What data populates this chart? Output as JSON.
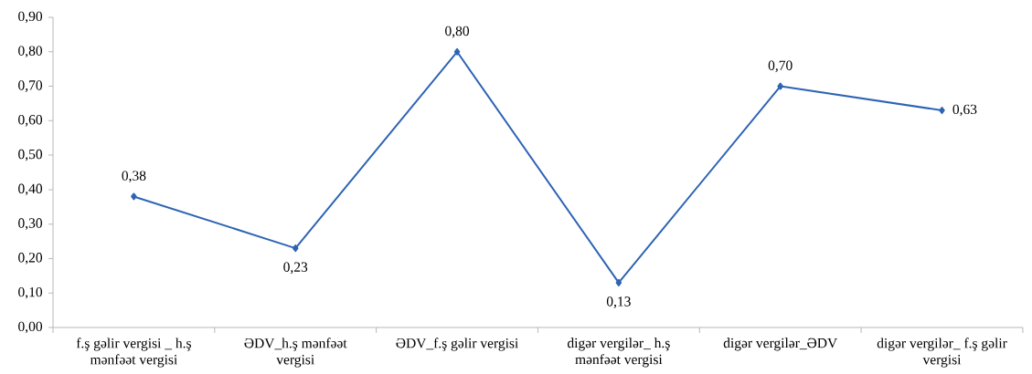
{
  "chart_data": {
    "type": "line",
    "categories": [
      "f.ş gəlir vergisi _ h.ş mənfəət vergisi",
      "ƏDV_h.ş mənfəət vergisi",
      "ƏDV_f.ş gəlir vergisi",
      "digər vergilər_ h.ş mənfəət vergisi",
      "digər vergilər_ƏDV",
      "digər vergilər_ f.ş gəlir vergisi"
    ],
    "series": [
      {
        "color": "#2e64b4",
        "values": [
          0.38,
          0.23,
          0.8,
          0.13,
          0.7,
          0.63
        ],
        "value_labels": [
          "0,38",
          "0,23",
          "0,80",
          "0,13",
          "0,70",
          "0,63"
        ]
      }
    ],
    "ylim": [
      0,
      0.9
    ],
    "yticks": [
      {
        "value": 0,
        "label": "0,00"
      },
      {
        "value": 0.1,
        "label": "0,10"
      },
      {
        "value": 0.2,
        "label": "0,20"
      },
      {
        "value": 0.3,
        "label": "0,30"
      },
      {
        "value": 0.4,
        "label": "0,40"
      },
      {
        "value": 0.5,
        "label": "0,50"
      },
      {
        "value": 0.6,
        "label": "0,60"
      },
      {
        "value": 0.7,
        "label": "0,70"
      },
      {
        "value": 0.8,
        "label": "0,80"
      },
      {
        "value": 0.9,
        "label": "0,90"
      }
    ],
    "marker": "diamond",
    "line_style": "solid"
  }
}
